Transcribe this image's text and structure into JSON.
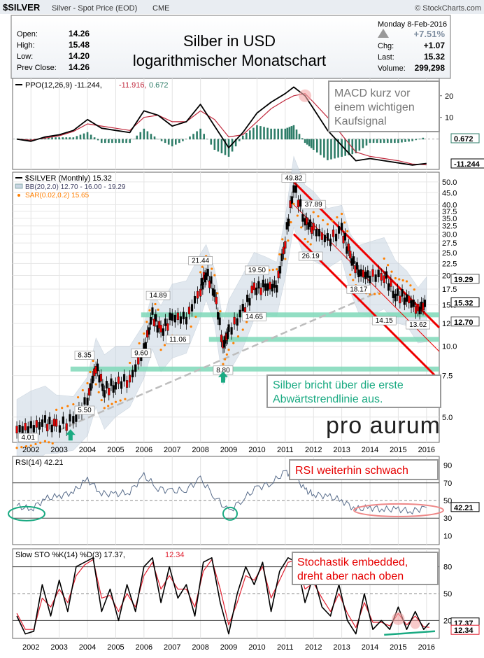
{
  "header": {
    "symbol": "$SILVER",
    "description": "Silver - Spot Price (EOD)",
    "exchange": "CME",
    "source": "© StockCharts.com",
    "date": "Monday  8-Feb-2016",
    "change_pct": "+7.51%",
    "stats_left": [
      {
        "label": "Open:",
        "value": "14.26"
      },
      {
        "label": "High:",
        "value": "15.48"
      },
      {
        "label": "Low:",
        "value": "14.20"
      },
      {
        "label": "Prev Close:",
        "value": "14.26"
      }
    ],
    "stats_right": [
      {
        "label": "Chg:",
        "value": "+1.07"
      },
      {
        "label": "Last:",
        "value": "15.32"
      },
      {
        "label": "Volume:",
        "value": "299,298"
      }
    ],
    "title_line1": "Silber in USD",
    "title_line2": "logarithmischer Monatschart"
  },
  "colors": {
    "price_line": "#000000",
    "signal_line": "#c0283c",
    "histogram": "#2e7d68",
    "sar": "#ff7f00",
    "band_fill": "#c9d6e3",
    "support_zone": "#7fd8b8",
    "channel": "#ee0000",
    "annotation_red": "#e60000",
    "annotation_green": "#1aaa82",
    "trend_dash": "#bdbdbd"
  },
  "chart_data": [
    {
      "type": "line",
      "panel": "ppo",
      "legend": "PPO(12,26,9) -11.244, -11.916, 0.672",
      "legend_parts": [
        "PPO(12,26,9) -11.244,",
        "-11.916,",
        "0.672"
      ],
      "y_ticks": [
        20,
        10
      ],
      "ylim": [
        -14,
        28
      ],
      "last_labels": [
        "0.672",
        "-11.244"
      ],
      "x": [
        2001.5,
        2002.0,
        2002.5,
        2003.0,
        2003.5,
        2004.0,
        2004.5,
        2005.0,
        2005.5,
        2006.0,
        2006.5,
        2007.0,
        2007.5,
        2008.0,
        2008.5,
        2009.0,
        2009.5,
        2010.0,
        2010.5,
        2011.0,
        2011.3,
        2011.7,
        2012.0,
        2012.5,
        2013.0,
        2013.5,
        2014.0,
        2014.5,
        2015.0,
        2015.5,
        2016.0
      ],
      "series": [
        {
          "name": "PPO",
          "values": [
            0,
            -1,
            1,
            2,
            4,
            9,
            5,
            4,
            3,
            13,
            11,
            6,
            8,
            16,
            6,
            -4,
            3,
            12,
            17,
            21,
            24,
            20,
            14,
            4,
            -3,
            -10,
            -9,
            -10,
            -11,
            -12,
            -11.244
          ]
        },
        {
          "name": "Signal",
          "values": [
            0,
            -0.5,
            0.5,
            1.5,
            3.5,
            7,
            6,
            5,
            4,
            10,
            11,
            8,
            8,
            13,
            9,
            1,
            2,
            8,
            14,
            18,
            20,
            21,
            17,
            10,
            2,
            -6,
            -8,
            -9,
            -10,
            -11.5,
            -11.916
          ]
        }
      ],
      "histogram": [
        0.672
      ]
    },
    {
      "type": "line",
      "panel": "price",
      "yscale": "log",
      "legend": [
        "$SILVER (Monthly) 15.32",
        "BB(20,2.0) 12.70 - 16.00 - 19.29",
        "SAR(0.02,0.2) 15.65"
      ],
      "y_ticks": [
        50.0,
        45.0,
        40.0,
        37.5,
        35.0,
        32.5,
        30.0,
        27.5,
        25.0,
        22.5,
        20.0,
        17.5,
        15.0,
        12.5,
        10.0,
        7.5,
        5.0
      ],
      "ylim": [
        3.9,
        55
      ],
      "last_labels": [
        "19.29",
        "15.32",
        "12.70"
      ],
      "x_ticks": [
        "2002",
        "2003",
        "2004",
        "2005",
        "2006",
        "2007",
        "2008",
        "2009",
        "2010",
        "2011",
        "2012",
        "2013",
        "2014",
        "2015",
        "2016"
      ],
      "x": [
        2001.5,
        2002.0,
        2002.5,
        2002.9,
        2003.5,
        2004.0,
        2004.3,
        2004.6,
        2005.0,
        2005.5,
        2006.0,
        2006.3,
        2006.6,
        2007.0,
        2007.5,
        2008.0,
        2008.2,
        2008.5,
        2008.8,
        2009.0,
        2009.5,
        2009.9,
        2010.3,
        2010.7,
        2011.0,
        2011.3,
        2011.7,
        2012.0,
        2012.5,
        2013.0,
        2013.3,
        2013.6,
        2014.0,
        2014.5,
        2014.9,
        2015.3,
        2015.7,
        2016.0
      ],
      "series": [
        {
          "name": "$SILVER",
          "values": [
            4.4,
            4.5,
            4.7,
            4.55,
            4.8,
            5.9,
            8.2,
            6.5,
            6.9,
            7.2,
            9.6,
            13.5,
            11.5,
            13.2,
            13.1,
            17.5,
            20.5,
            17.0,
            10.0,
            11.5,
            14.0,
            17.5,
            17.8,
            18.0,
            28.0,
            48.0,
            34.0,
            31.5,
            28.0,
            31.0,
            24.0,
            20.5,
            19.8,
            20.0,
            16.5,
            16.0,
            14.2,
            15.32
          ]
        }
      ],
      "annotations": [
        "49.82",
        "37.89",
        "26.19",
        "21.44",
        "19.50",
        "18.17",
        "14.89",
        "14.65",
        "14.15",
        "13.62",
        "11.06",
        "9.60",
        "8.35",
        "8.80",
        "5.50",
        "4.01"
      ],
      "support_levels": [
        13.6,
        10.7,
        8.0
      ],
      "sar": [
        15.65
      ]
    },
    {
      "type": "line",
      "panel": "rsi",
      "legend": "RSI(14) 42.21",
      "y_ticks": [
        90,
        70,
        50,
        30,
        10
      ],
      "ylim": [
        0,
        100
      ],
      "last_labels": [
        "42.21"
      ],
      "x": [
        2001.5,
        2002.0,
        2002.5,
        2003.0,
        2003.5,
        2004.0,
        2004.5,
        2005.0,
        2005.5,
        2006.0,
        2006.5,
        2007.0,
        2007.5,
        2008.0,
        2008.5,
        2009.0,
        2009.5,
        2010.0,
        2010.5,
        2011.0,
        2011.3,
        2011.7,
        2012.0,
        2012.5,
        2013.0,
        2013.5,
        2014.0,
        2014.5,
        2015.0,
        2015.5,
        2016.0
      ],
      "series": [
        {
          "name": "RSI",
          "values": [
            44,
            40,
            52,
            55,
            60,
            74,
            58,
            57,
            60,
            78,
            64,
            60,
            63,
            74,
            55,
            37,
            52,
            64,
            70,
            82,
            80,
            62,
            57,
            55,
            50,
            40,
            42,
            40,
            40,
            38,
            42.21
          ]
        }
      ]
    },
    {
      "type": "line",
      "panel": "stoch",
      "legend": "Slow STO %K(14) %D(3) 17.37, 12.34",
      "legend_parts": [
        "Slow STO %K(14) %D(3) 17.37,",
        "12.34"
      ],
      "y_ticks": [
        80,
        50,
        20
      ],
      "ylim": [
        0,
        100
      ],
      "last_labels": [
        "17.37",
        "12.34"
      ],
      "x_ticks": [
        "2002",
        "2003",
        "2004",
        "2005",
        "2006",
        "2007",
        "2008",
        "2009",
        "2010",
        "2011",
        "2012",
        "2013",
        "2014",
        "2015",
        "2016"
      ],
      "x": [
        2001.5,
        2001.8,
        2002.1,
        2002.4,
        2002.7,
        2003.0,
        2003.3,
        2003.6,
        2003.9,
        2004.2,
        2004.5,
        2004.8,
        2005.1,
        2005.4,
        2005.7,
        2006.0,
        2006.3,
        2006.6,
        2006.9,
        2007.2,
        2007.5,
        2007.8,
        2008.1,
        2008.4,
        2008.7,
        2009.0,
        2009.3,
        2009.6,
        2009.9,
        2010.2,
        2010.5,
        2010.8,
        2011.1,
        2011.4,
        2011.7,
        2012.0,
        2012.3,
        2012.6,
        2012.9,
        2013.2,
        2013.5,
        2013.8,
        2014.1,
        2014.4,
        2014.7,
        2015.0,
        2015.3,
        2015.6,
        2015.9,
        2016.1
      ],
      "series": [
        {
          "name": "%K",
          "values": [
            25,
            5,
            8,
            60,
            25,
            65,
            30,
            80,
            85,
            90,
            30,
            55,
            20,
            60,
            30,
            80,
            90,
            40,
            80,
            45,
            60,
            25,
            85,
            90,
            40,
            5,
            50,
            80,
            60,
            85,
            30,
            75,
            90,
            85,
            40,
            70,
            35,
            25,
            60,
            20,
            5,
            50,
            10,
            20,
            10,
            35,
            10,
            30,
            10,
            17.37
          ]
        },
        {
          "name": "%D",
          "values": [
            28,
            10,
            10,
            45,
            35,
            55,
            40,
            70,
            82,
            88,
            45,
            48,
            30,
            50,
            35,
            70,
            85,
            55,
            70,
            55,
            55,
            35,
            75,
            88,
            55,
            15,
            40,
            70,
            65,
            80,
            45,
            65,
            85,
            87,
            55,
            62,
            45,
            30,
            50,
            28,
            12,
            40,
            18,
            18,
            14,
            28,
            15,
            25,
            13,
            12.34
          ]
        }
      ]
    }
  ],
  "annotations": {
    "macd_note": [
      "MACD kurz vor",
      "einem wichtigen",
      "Kaufsignal"
    ],
    "break_note": [
      "Silber bricht über die erste",
      "Abwärtstrendlinie aus."
    ],
    "rsi_note": "RSI weiterhin schwach",
    "stoch_note": [
      "Stochastik embedded,",
      "dreht aber nach oben"
    ],
    "logo": "pro aurum"
  }
}
